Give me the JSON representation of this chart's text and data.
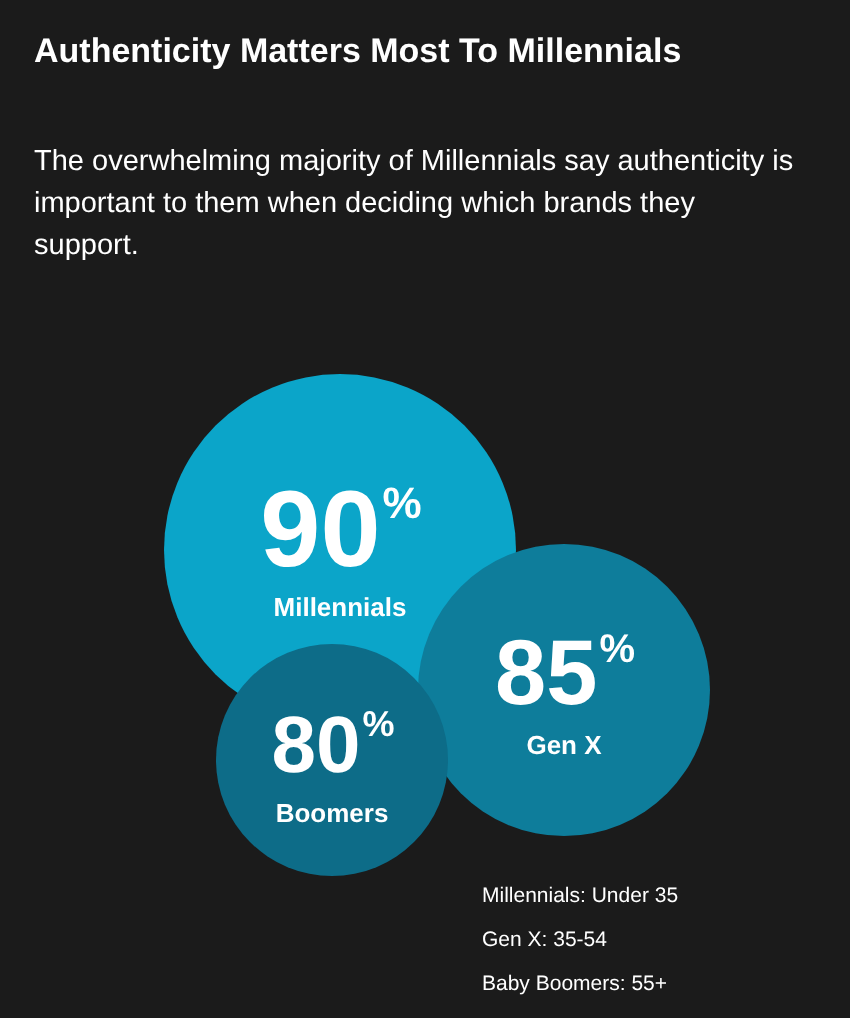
{
  "chart_data": {
    "type": "other",
    "title": "Authenticity Matters Most To Millennials",
    "subtitle": "The overwhelming majority of Millennials say authenticity is important to them when deciding which brands they support.",
    "categories": [
      "Millennials",
      "Gen X",
      "Boomers"
    ],
    "values": [
      90,
      85,
      80
    ],
    "value_labels": [
      "90%",
      "85%",
      "80%"
    ],
    "colors": [
      "#0ba5c9",
      "#0e7d9b",
      "#0d6c88"
    ],
    "annotations": [
      "Millennials: Under 35",
      "Gen X: 35-54",
      "Baby Boomers: 55+"
    ]
  }
}
